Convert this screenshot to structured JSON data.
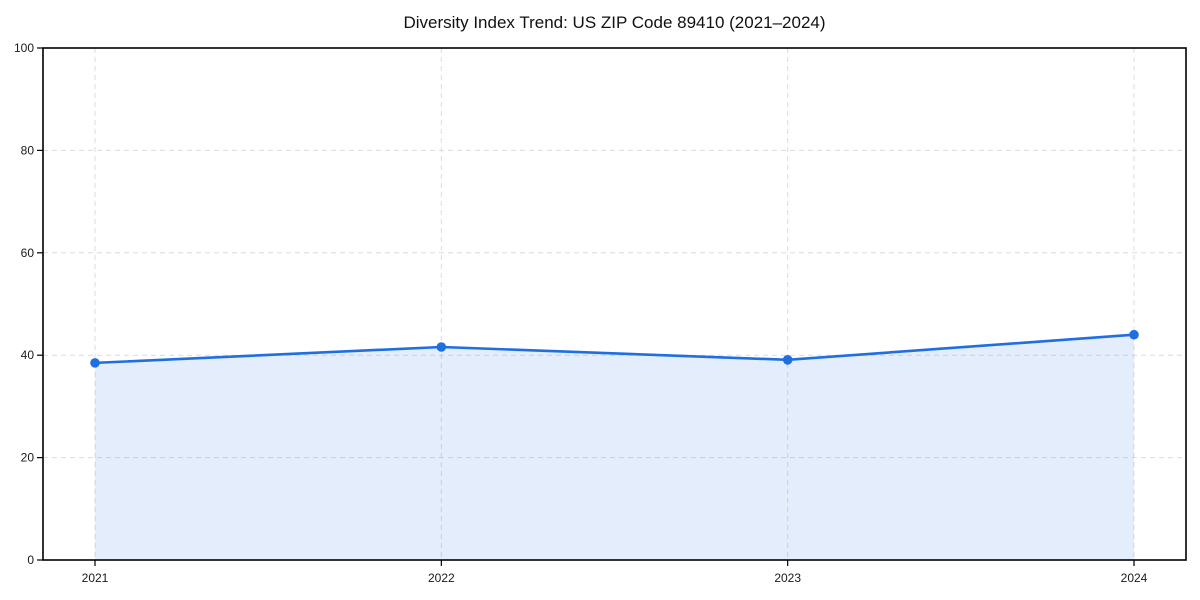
{
  "title": "Diversity Index Trend: US ZIP Code 89410 (2021–2024)",
  "colors": {
    "line": "#1f6fe0",
    "marker": "#1f6fe0",
    "area_fill": "rgba(31,111,224,0.12)",
    "grid": "#dcdcdc",
    "spine": "#000000",
    "tick_label": "#1a1a1a",
    "title_text": "#111111",
    "background": "#ffffff"
  },
  "chart_data": {
    "type": "line",
    "title": "Diversity Index Trend: US ZIP Code 89410 (2021–2024)",
    "x": [
      2021,
      2022,
      2023,
      2024
    ],
    "x_tick_labels": [
      "2021",
      "2022",
      "2023",
      "2024"
    ],
    "series": [
      {
        "name": "Diversity Index",
        "values": [
          38.5,
          41.6,
          39.1,
          44.0
        ]
      }
    ],
    "xlabel": "",
    "ylabel": "",
    "ylim": [
      0,
      100
    ],
    "yticks": [
      0,
      20,
      40,
      60,
      80,
      100
    ],
    "y_tick_labels": [
      "0",
      "20",
      "40",
      "60",
      "80",
      "100"
    ],
    "grid": true,
    "grid_style": "dashed",
    "grid_axes": "both",
    "marker": "circle",
    "area_fill": true,
    "legend_position": "none",
    "frame": "full-box"
  }
}
